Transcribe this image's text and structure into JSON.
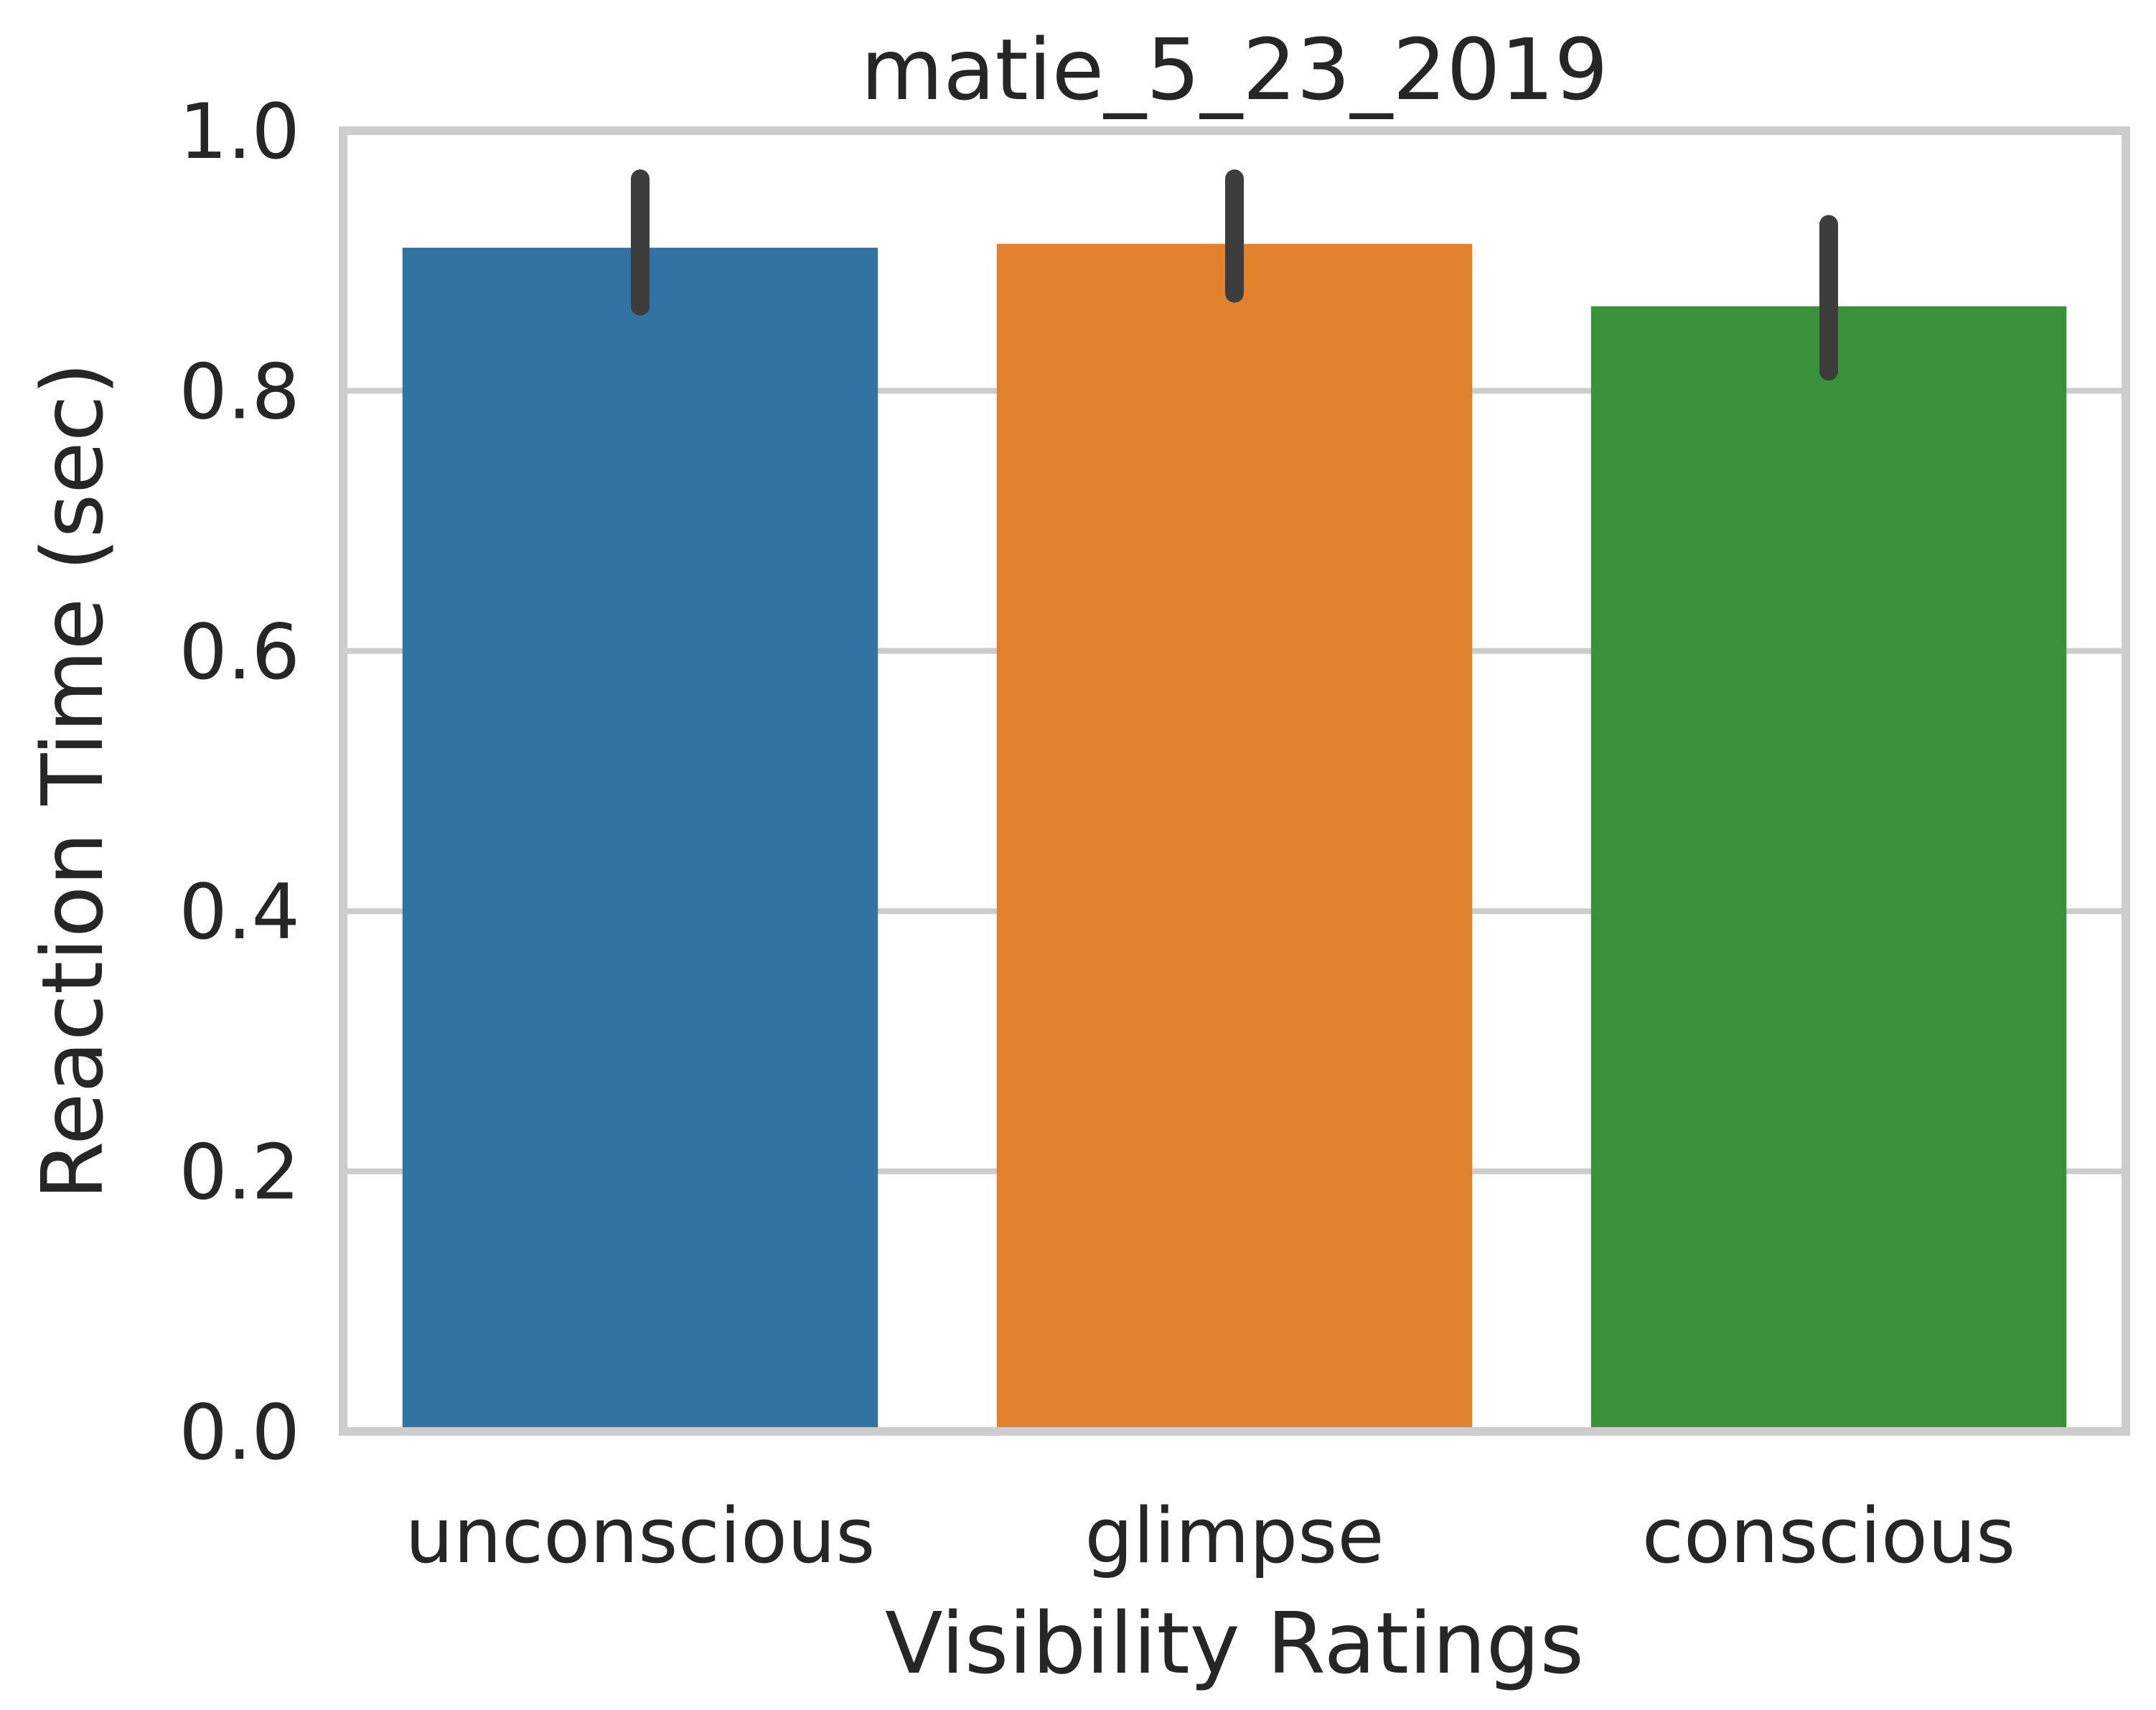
{
  "chart_data": {
    "type": "bar",
    "title": "matie_5_23_2019",
    "xlabel": "Visibility Ratings",
    "ylabel": "Reaction Time (sec)",
    "categories": [
      "unconscious",
      "glimpse",
      "conscious"
    ],
    "values": [
      0.91,
      0.913,
      0.865
    ],
    "error_low": [
      0.865,
      0.875,
      0.815
    ],
    "error_high": [
      0.963,
      0.963,
      0.928
    ],
    "colors": [
      "#3274a1",
      "#e1812c",
      "#3a923a"
    ],
    "ylim": [
      0.0,
      1.0
    ],
    "yticks": [
      "0.0",
      "0.2",
      "0.4",
      "0.6",
      "0.8",
      "1.0"
    ],
    "grid": true,
    "error_color": "#3d3d3d"
  }
}
